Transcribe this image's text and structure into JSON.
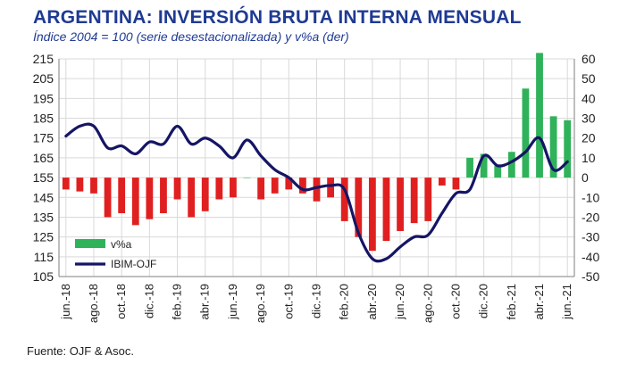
{
  "header": {
    "title": "ARGENTINA: INVERSIÓN BRUTA INTERNA MENSUAL",
    "subtitle": "Índice 2004 = 100 (serie desestacionalizada) y v%a (der)"
  },
  "footer": {
    "source": "Fuente: OJF & Asoc."
  },
  "colors": {
    "bars_negative": "#e02020",
    "bars_positive": "#2fb25a",
    "line": "#151565",
    "title": "#1f3a93"
  },
  "chart_data": {
    "type": "bar+line",
    "x": [
      "jun.-18",
      "jul.-18",
      "ago.-18",
      "sep.-18",
      "oct.-18",
      "nov.-18",
      "dic.-18",
      "ene.-19",
      "feb.-19",
      "mar.-19",
      "abr.-19",
      "may.-19",
      "jun.-19",
      "jul.-19",
      "ago.-19",
      "sep.-19",
      "oct.-19",
      "nov.-19",
      "dic.-19",
      "ene.-20",
      "feb.-20",
      "mar.-20",
      "abr.-20",
      "may.-20",
      "jun.-20",
      "jul.-20",
      "ago.-20",
      "sep.-20",
      "oct.-20",
      "nov.-20",
      "dic.-20",
      "ene.-21",
      "feb.-21",
      "mar.-21",
      "abr.-21",
      "may.-21",
      "jun.-21"
    ],
    "tick_labels": [
      "jun.-18",
      "ago.-18",
      "oct.-18",
      "dic.-18",
      "feb.-19",
      "abr.-19",
      "jun.-19",
      "ago.-19",
      "oct.-19",
      "dic.-19",
      "feb.-20",
      "abr.-20",
      "jun.-20",
      "ago.-20",
      "oct.-20",
      "dic.-20",
      "feb.-21",
      "abr.-21",
      "jun.-21"
    ],
    "series": [
      {
        "name": "v%a",
        "axis": "right",
        "type": "bar",
        "values": [
          -6,
          -7,
          -8,
          -20,
          -18,
          -24,
          -21,
          -18,
          -11,
          -20,
          -17,
          -11,
          -10,
          0,
          -11,
          -8,
          -6,
          -8,
          -12,
          -10,
          -22,
          -30,
          -37,
          -32,
          -27,
          -23,
          -22,
          -4,
          -6,
          10,
          12,
          6,
          13,
          45,
          63,
          31,
          29
        ]
      },
      {
        "name": "IBIM-OJF",
        "axis": "left",
        "type": "line",
        "values": [
          176,
          181,
          181,
          170,
          171,
          167,
          173,
          172,
          181,
          172,
          175,
          171,
          165,
          174,
          166,
          159,
          155,
          149,
          150,
          151,
          149,
          127,
          114,
          114,
          120,
          125,
          126,
          137,
          147,
          149,
          166,
          161,
          163,
          168,
          175,
          159,
          163
        ]
      }
    ],
    "ylim_left": [
      105,
      215
    ],
    "yticks_left": [
      105,
      115,
      125,
      135,
      145,
      155,
      165,
      175,
      185,
      195,
      205,
      215
    ],
    "ylim_right": [
      -50,
      60
    ],
    "yticks_right": [
      -50,
      -40,
      -30,
      -20,
      -10,
      0,
      10,
      20,
      30,
      40,
      50,
      60
    ],
    "grid": true,
    "legend_position": "bottom-left"
  }
}
